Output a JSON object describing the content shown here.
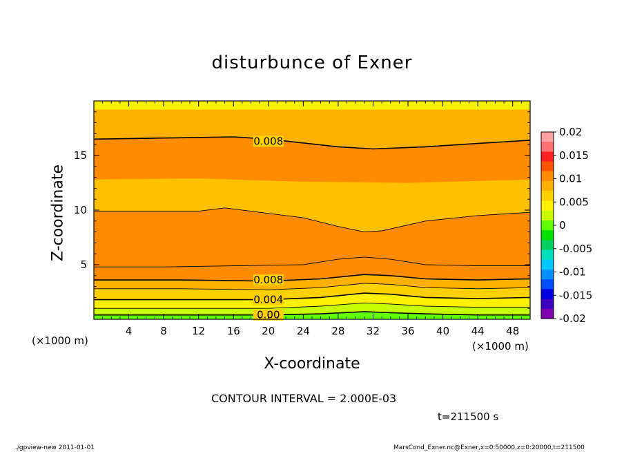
{
  "title": "disturbunce of Exner",
  "x_axis_label": "X-coordinate",
  "y_axis_label": "Z-coordinate",
  "x_unit_left": "(×1000 m)",
  "x_unit_right": "(×1000 m)",
  "contour_interval": "CONTOUR INTERVAL = 2.000E-03",
  "time_label": "t=211500 s",
  "footer_left": "./gpview-new   2011-01-01",
  "footer_right": "MarsCond_Exner.nc@Exner,x=0:50000,z=0:20000,t=211500",
  "chart_data": {
    "type": "heatmap",
    "title": "disturbunce of Exner",
    "xlabel": "X-coordinate",
    "ylabel": "Z-coordinate",
    "xlim": [
      0,
      50
    ],
    "ylim": [
      0,
      20
    ],
    "x_ticks": [
      "4",
      "8",
      "12",
      "16",
      "20",
      "24",
      "28",
      "32",
      "36",
      "40",
      "44",
      "48"
    ],
    "y_ticks": [
      "5",
      "10",
      "15"
    ],
    "contour_labels": [
      "0.008",
      "0.008",
      "0.004",
      "0.00"
    ],
    "colorbar": {
      "range": [
        -0.02,
        0.02
      ],
      "tick_labels": [
        "0.02",
        "0.015",
        "0.01",
        "0.005",
        "0",
        "-0.005",
        "-0.01",
        "-0.015",
        "-0.02"
      ],
      "colors": [
        "#ffa0a0",
        "#ff7070",
        "#ff2020",
        "#ff5500",
        "#ff8c00",
        "#ffb000",
        "#ffd000",
        "#ffef00",
        "#c8ff00",
        "#60ff00",
        "#00e000",
        "#00d060",
        "#00e0c0",
        "#00c8ff",
        "#0090ff",
        "#0050ff",
        "#0000e0",
        "#4000c0",
        "#8000b0"
      ]
    },
    "contours": [
      {
        "level": 0.008,
        "points": [
          [
            0,
            16.5
          ],
          [
            8,
            16.6
          ],
          [
            16,
            16.7
          ],
          [
            20,
            16.5
          ],
          [
            28,
            15.8
          ],
          [
            32,
            15.6
          ],
          [
            38,
            15.8
          ],
          [
            44,
            16.1
          ],
          [
            50,
            16.4
          ]
        ]
      },
      {
        "level": 0.01,
        "points": [
          [
            0,
            9.9
          ],
          [
            8,
            9.9
          ],
          [
            12,
            9.9
          ],
          [
            15,
            10.2
          ],
          [
            18,
            9.9
          ],
          [
            24,
            9.3
          ],
          [
            28,
            8.5
          ],
          [
            31,
            8.0
          ],
          [
            33,
            8.1
          ],
          [
            38,
            9.0
          ],
          [
            44,
            9.5
          ],
          [
            50,
            9.8
          ]
        ]
      },
      {
        "level": 0.01,
        "points": [
          [
            0,
            4.8
          ],
          [
            8,
            4.8
          ],
          [
            16,
            4.9
          ],
          [
            24,
            5.0
          ],
          [
            28,
            5.5
          ],
          [
            31,
            5.7
          ],
          [
            34,
            5.5
          ],
          [
            38,
            5.0
          ],
          [
            44,
            4.9
          ],
          [
            50,
            4.9
          ]
        ]
      },
      {
        "level": 0.008,
        "points": [
          [
            0,
            3.6
          ],
          [
            10,
            3.6
          ],
          [
            20,
            3.5
          ],
          [
            26,
            3.7
          ],
          [
            31,
            4.1
          ],
          [
            34,
            4.0
          ],
          [
            38,
            3.7
          ],
          [
            44,
            3.6
          ],
          [
            50,
            3.7
          ]
        ]
      },
      {
        "level": 0.006,
        "points": [
          [
            0,
            2.8
          ],
          [
            10,
            2.8
          ],
          [
            20,
            2.7
          ],
          [
            26,
            2.9
          ],
          [
            31,
            3.3
          ],
          [
            34,
            3.2
          ],
          [
            38,
            2.9
          ],
          [
            44,
            2.8
          ],
          [
            50,
            2.9
          ]
        ]
      },
      {
        "level": 0.004,
        "points": [
          [
            0,
            1.8
          ],
          [
            10,
            1.8
          ],
          [
            20,
            1.8
          ],
          [
            26,
            2.0
          ],
          [
            31,
            2.4
          ],
          [
            34,
            2.3
          ],
          [
            38,
            2.0
          ],
          [
            44,
            1.9
          ],
          [
            50,
            2.0
          ]
        ]
      },
      {
        "level": 0.002,
        "points": [
          [
            0,
            1.0
          ],
          [
            10,
            1.0
          ],
          [
            20,
            1.0
          ],
          [
            26,
            1.2
          ],
          [
            31,
            1.5
          ],
          [
            34,
            1.4
          ],
          [
            38,
            1.2
          ],
          [
            44,
            1.1
          ],
          [
            50,
            1.1
          ]
        ]
      },
      {
        "level": 0.0,
        "points": [
          [
            0,
            0.4
          ],
          [
            10,
            0.4
          ],
          [
            20,
            0.4
          ],
          [
            26,
            0.5
          ],
          [
            31,
            0.7
          ],
          [
            34,
            0.6
          ],
          [
            38,
            0.5
          ],
          [
            44,
            0.4
          ],
          [
            50,
            0.4
          ]
        ]
      }
    ],
    "label_positions": [
      [
        20,
        16.3
      ],
      [
        20,
        3.6
      ],
      [
        20,
        1.8
      ],
      [
        20,
        0.4
      ]
    ]
  }
}
